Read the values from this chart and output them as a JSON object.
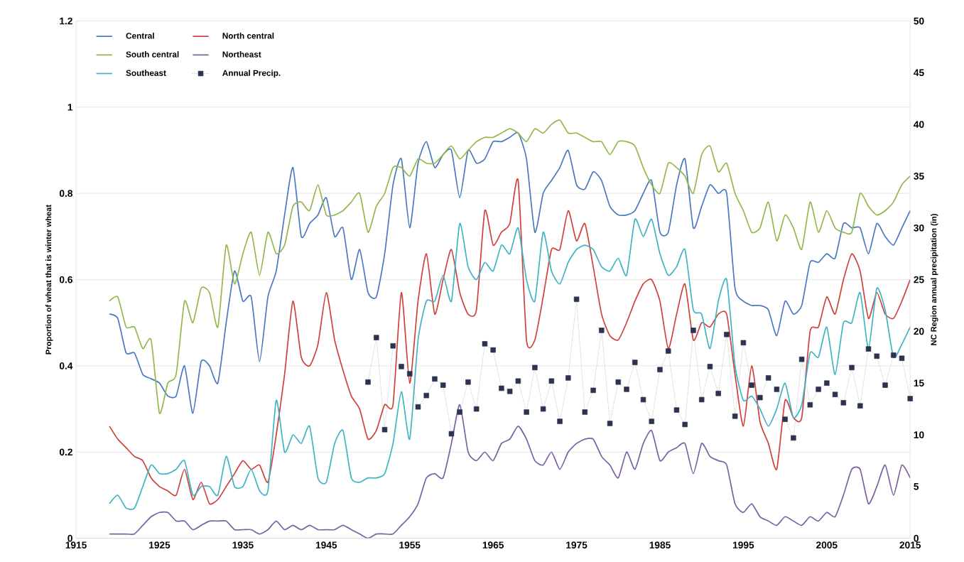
{
  "chart_data": {
    "type": "line",
    "xlabel": null,
    "ylabel": "Proportion of wheat that is winter wheat",
    "y2label": "NC Region annual precipitation (in)",
    "x": [
      1919,
      1920,
      1921,
      1922,
      1923,
      1924,
      1925,
      1926,
      1927,
      1928,
      1929,
      1930,
      1931,
      1932,
      1933,
      1934,
      1935,
      1936,
      1937,
      1938,
      1939,
      1940,
      1941,
      1942,
      1943,
      1944,
      1945,
      1946,
      1947,
      1948,
      1949,
      1950,
      1951,
      1952,
      1953,
      1954,
      1955,
      1956,
      1957,
      1958,
      1959,
      1960,
      1961,
      1962,
      1963,
      1964,
      1965,
      1966,
      1967,
      1968,
      1969,
      1970,
      1971,
      1972,
      1973,
      1974,
      1975,
      1976,
      1977,
      1978,
      1979,
      1980,
      1981,
      1982,
      1983,
      1984,
      1985,
      1986,
      1987,
      1988,
      1989,
      1990,
      1991,
      1992,
      1993,
      1994,
      1995,
      1996,
      1997,
      1998,
      1999,
      2000,
      2001,
      2002,
      2003,
      2004,
      2005,
      2006,
      2007,
      2008,
      2009,
      2010,
      2011,
      2012,
      2013,
      2014,
      2015
    ],
    "series": [
      {
        "name": "Central",
        "color": "#4a78c2",
        "values": [
          0.52,
          0.51,
          0.43,
          0.43,
          0.38,
          0.37,
          0.36,
          0.33,
          0.33,
          0.4,
          0.29,
          0.41,
          0.4,
          0.36,
          0.5,
          0.62,
          0.55,
          0.56,
          0.41,
          0.56,
          0.62,
          0.75,
          0.86,
          0.7,
          0.73,
          0.75,
          0.79,
          0.7,
          0.72,
          0.6,
          0.67,
          0.57,
          0.56,
          0.66,
          0.82,
          0.88,
          0.72,
          0.87,
          0.92,
          0.86,
          0.89,
          0.9,
          0.79,
          0.9,
          0.87,
          0.88,
          0.92,
          0.92,
          0.93,
          0.94,
          0.88,
          0.71,
          0.8,
          0.83,
          0.86,
          0.9,
          0.82,
          0.81,
          0.85,
          0.83,
          0.77,
          0.75,
          0.75,
          0.76,
          0.8,
          0.83,
          0.71,
          0.71,
          0.82,
          0.88,
          0.72,
          0.77,
          0.82,
          0.8,
          0.8,
          0.58,
          0.55,
          0.54,
          0.54,
          0.53,
          0.47,
          0.55,
          0.52,
          0.54,
          0.64,
          0.64,
          0.66,
          0.65,
          0.73,
          0.72,
          0.72,
          0.66,
          0.73,
          0.7,
          0.68,
          0.72,
          0.76
        ]
      },
      {
        "name": "North central",
        "color": "#d0413c",
        "values": [
          0.26,
          0.23,
          0.21,
          0.19,
          0.18,
          0.14,
          0.12,
          0.11,
          0.1,
          0.16,
          0.09,
          0.13,
          0.08,
          0.09,
          0.12,
          0.15,
          0.18,
          0.16,
          0.17,
          0.13,
          0.24,
          0.38,
          0.55,
          0.42,
          0.4,
          0.45,
          0.57,
          0.46,
          0.39,
          0.33,
          0.3,
          0.23,
          0.25,
          0.31,
          0.31,
          0.57,
          0.36,
          0.55,
          0.66,
          0.52,
          0.6,
          0.67,
          0.57,
          0.52,
          0.53,
          0.76,
          0.68,
          0.71,
          0.73,
          0.83,
          0.46,
          0.46,
          0.56,
          0.67,
          0.67,
          0.76,
          0.69,
          0.73,
          0.63,
          0.52,
          0.47,
          0.46,
          0.5,
          0.55,
          0.59,
          0.6,
          0.55,
          0.44,
          0.52,
          0.59,
          0.46,
          0.5,
          0.49,
          0.52,
          0.52,
          0.38,
          0.26,
          0.4,
          0.27,
          0.22,
          0.16,
          0.32,
          0.28,
          0.28,
          0.48,
          0.49,
          0.56,
          0.52,
          0.6,
          0.66,
          0.62,
          0.51,
          0.57,
          0.52,
          0.51,
          0.55,
          0.6
        ]
      },
      {
        "name": "South central",
        "color": "#93b84a",
        "values": [
          0.55,
          0.56,
          0.49,
          0.49,
          0.44,
          0.46,
          0.29,
          0.36,
          0.38,
          0.55,
          0.5,
          0.58,
          0.57,
          0.49,
          0.68,
          0.59,
          0.66,
          0.71,
          0.61,
          0.71,
          0.66,
          0.68,
          0.77,
          0.78,
          0.76,
          0.82,
          0.75,
          0.75,
          0.76,
          0.78,
          0.8,
          0.71,
          0.77,
          0.8,
          0.86,
          0.86,
          0.84,
          0.88,
          0.87,
          0.87,
          0.89,
          0.91,
          0.88,
          0.9,
          0.92,
          0.93,
          0.93,
          0.94,
          0.95,
          0.94,
          0.92,
          0.95,
          0.94,
          0.96,
          0.97,
          0.94,
          0.94,
          0.93,
          0.92,
          0.92,
          0.89,
          0.92,
          0.92,
          0.91,
          0.86,
          0.82,
          0.8,
          0.87,
          0.86,
          0.84,
          0.8,
          0.89,
          0.91,
          0.85,
          0.87,
          0.8,
          0.76,
          0.71,
          0.72,
          0.78,
          0.69,
          0.75,
          0.72,
          0.67,
          0.78,
          0.71,
          0.76,
          0.72,
          0.71,
          0.71,
          0.8,
          0.77,
          0.75,
          0.76,
          0.78,
          0.82,
          0.84
        ]
      },
      {
        "name": "Northeast",
        "color": "#7b60a3",
        "values": [
          0.01,
          0.01,
          0.01,
          0.01,
          0.03,
          0.05,
          0.06,
          0.06,
          0.04,
          0.04,
          0.02,
          0.03,
          0.04,
          0.04,
          0.04,
          0.02,
          0.02,
          0.02,
          0.01,
          0.02,
          0.04,
          0.02,
          0.03,
          0.02,
          0.03,
          0.02,
          0.02,
          0.02,
          0.03,
          0.02,
          0.01,
          0.0,
          0.01,
          0.01,
          0.01,
          0.03,
          0.05,
          0.08,
          0.14,
          0.15,
          0.14,
          0.22,
          0.31,
          0.2,
          0.18,
          0.2,
          0.18,
          0.22,
          0.23,
          0.26,
          0.23,
          0.18,
          0.17,
          0.2,
          0.16,
          0.2,
          0.22,
          0.23,
          0.23,
          0.19,
          0.17,
          0.14,
          0.2,
          0.16,
          0.22,
          0.25,
          0.18,
          0.2,
          0.21,
          0.22,
          0.15,
          0.22,
          0.19,
          0.18,
          0.17,
          0.08,
          0.06,
          0.08,
          0.05,
          0.04,
          0.03,
          0.05,
          0.04,
          0.03,
          0.05,
          0.04,
          0.06,
          0.05,
          0.1,
          0.16,
          0.16,
          0.08,
          0.12,
          0.17,
          0.1,
          0.17,
          0.14
        ]
      },
      {
        "name": "Southeast",
        "color": "#3fb3c4",
        "values": [
          0.08,
          0.1,
          0.07,
          0.07,
          0.12,
          0.17,
          0.15,
          0.15,
          0.16,
          0.18,
          0.1,
          0.12,
          0.12,
          0.1,
          0.19,
          0.12,
          0.12,
          0.16,
          0.11,
          0.11,
          0.32,
          0.2,
          0.24,
          0.22,
          0.26,
          0.14,
          0.13,
          0.22,
          0.25,
          0.14,
          0.13,
          0.14,
          0.14,
          0.15,
          0.22,
          0.34,
          0.23,
          0.46,
          0.55,
          0.55,
          0.61,
          0.55,
          0.73,
          0.63,
          0.6,
          0.64,
          0.62,
          0.68,
          0.66,
          0.72,
          0.6,
          0.55,
          0.71,
          0.62,
          0.59,
          0.64,
          0.67,
          0.68,
          0.67,
          0.63,
          0.62,
          0.65,
          0.61,
          0.74,
          0.7,
          0.74,
          0.66,
          0.61,
          0.63,
          0.67,
          0.53,
          0.52,
          0.44,
          0.55,
          0.6,
          0.4,
          0.32,
          0.33,
          0.3,
          0.26,
          0.3,
          0.36,
          0.28,
          0.31,
          0.43,
          0.42,
          0.49,
          0.38,
          0.5,
          0.5,
          0.57,
          0.44,
          0.58,
          0.53,
          0.42,
          0.45,
          0.49
        ]
      },
      {
        "name": "Annual Precip.",
        "color": "#2b3350",
        "axis": "y2",
        "marker": "square",
        "line_style": "dotted",
        "x": [
          1950,
          1951,
          1952,
          1953,
          1954,
          1955,
          1956,
          1957,
          1958,
          1959,
          1960,
          1961,
          1962,
          1963,
          1964,
          1965,
          1966,
          1967,
          1968,
          1969,
          1970,
          1971,
          1972,
          1973,
          1974,
          1975,
          1976,
          1977,
          1978,
          1979,
          1980,
          1981,
          1982,
          1983,
          1984,
          1985,
          1986,
          1987,
          1988,
          1989,
          1990,
          1991,
          1992,
          1993,
          1994,
          1995,
          1996,
          1997,
          1998,
          1999,
          2000,
          2001,
          2002,
          2003,
          2004,
          2005,
          2006,
          2007,
          2008,
          2009,
          2010,
          2011,
          2012,
          2013,
          2014,
          2015
        ],
        "values": [
          15.1,
          19.4,
          10.5,
          18.6,
          16.6,
          15.9,
          12.7,
          13.8,
          15.4,
          14.8,
          10.1,
          12.2,
          15.1,
          12.5,
          18.8,
          18.2,
          14.5,
          14.2,
          15.2,
          12.2,
          16.5,
          12.5,
          15.2,
          11.3,
          15.5,
          23.1,
          12.2,
          14.3,
          20.1,
          11.1,
          15.1,
          14.4,
          17.0,
          13.4,
          11.3,
          16.3,
          18.1,
          12.4,
          11.0,
          20.1,
          13.4,
          16.6,
          14.0,
          19.7,
          11.8,
          18.9,
          14.8,
          13.6,
          15.5,
          14.4,
          11.5,
          9.7,
          17.3,
          12.9,
          14.4,
          15.0,
          13.9,
          13.1,
          16.5,
          12.8,
          18.3,
          17.6,
          14.8,
          17.7,
          17.4,
          13.5
        ]
      }
    ],
    "xlim": [
      1915,
      2015
    ],
    "xticks": [
      1915,
      1925,
      1935,
      1945,
      1955,
      1965,
      1975,
      1985,
      1995,
      2005,
      2015
    ],
    "ylim": [
      0,
      1.2
    ],
    "yticks": [
      0,
      0.2,
      0.4,
      0.6,
      0.8,
      1,
      1.2
    ],
    "y2lim": [
      0,
      50
    ],
    "y2ticks": [
      0,
      5,
      10,
      15,
      20,
      25,
      30,
      35,
      40,
      45,
      50
    ],
    "grid": "y",
    "legend": "top left"
  }
}
